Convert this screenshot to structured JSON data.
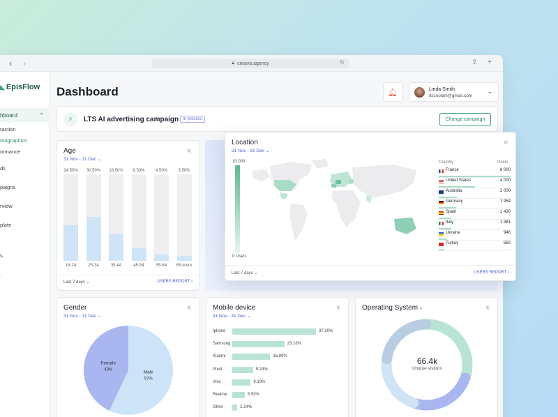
{
  "browser": {
    "url": "creava.agency"
  },
  "sidebar": {
    "logo": "EpisFlow",
    "active_item": "hboard",
    "sub_items": [
      "raction",
      "mographics",
      "ormance"
    ],
    "items": [
      "ds",
      "paigns",
      "rview",
      "plate",
      "s",
      "."
    ]
  },
  "header": {
    "title": "Dashboard",
    "user": {
      "name": "Linda Smith",
      "email": "itscoolart@gmail.com"
    }
  },
  "campaign": {
    "title": "LTS AI advertising campaign",
    "status": "In process",
    "button": "Change campaign"
  },
  "age": {
    "title": "Age",
    "date_range": "31 Nov - 31 Dec",
    "footer_left": "Last 7 days",
    "footer_right": "USERS REPORT",
    "chart_data": {
      "type": "bar",
      "categories": [
        "18-24",
        "25-34",
        "35-44",
        "45-54",
        "55-64",
        "65-more"
      ],
      "values": [
        24.5,
        30.5,
        18.5,
        8.5,
        4.5,
        3.5
      ],
      "value_labels": [
        "24.50%",
        "30.50%",
        "18.50%",
        "8.50%",
        "4.50%",
        "3.50%"
      ],
      "ylim": [
        0,
        100
      ]
    }
  },
  "location": {
    "title": "Location",
    "date_range": "31 Nov - 31 Dec",
    "scale_max": "10 000",
    "scale_min": "0 Users",
    "col_country": "Country",
    "col_users": "Users",
    "footer_left": "Last 7 days",
    "footer_right": "USERS REPORT",
    "chart_data": {
      "type": "table",
      "rows": [
        {
          "country": "France",
          "users": "8 000",
          "value": 8000
        },
        {
          "country": "United States",
          "users": "4 000",
          "value": 4000
        },
        {
          "country": "Australia",
          "users": "2 000",
          "value": 2000
        },
        {
          "country": "Germany",
          "users": "1 954",
          "value": 1954
        },
        {
          "country": "Spain",
          "users": "1 430",
          "value": 1430
        },
        {
          "country": "Italy",
          "users": "1 381",
          "value": 1381
        },
        {
          "country": "Ukraine",
          "users": "946",
          "value": 946
        },
        {
          "country": "Turkey",
          "users": "582",
          "value": 582
        }
      ]
    }
  },
  "gender": {
    "title": "Gender",
    "date_range": "31 Nov - 31 Dec",
    "chart_data": {
      "type": "pie",
      "slices": [
        {
          "label": "Female",
          "pct": "43%",
          "value": 43,
          "color": "#a9b6f0"
        },
        {
          "label": "Male",
          "pct": "57%",
          "value": 57,
          "color": "#cde4f8"
        }
      ]
    }
  },
  "mobile": {
    "title": "Mobile device",
    "date_range": "31 Nov - 31 Dec",
    "chart_data": {
      "type": "bar",
      "categories": [
        "Iphone",
        "Samsung",
        "Xiaomi",
        "Pixel",
        "Vivo",
        "Realme",
        "Other"
      ],
      "values": [
        37.2,
        23.16,
        16.89,
        9.24,
        8.19,
        5.53,
        2.24
      ],
      "value_labels": [
        "37.20%",
        "23.16%",
        "16.89%",
        "9.24%",
        "8.19%",
        "5.53%",
        "2.24%"
      ]
    }
  },
  "os": {
    "title": "Operating System",
    "center_value": "66.4k",
    "center_label": "Unique visitors",
    "chart_data": {
      "type": "pie",
      "segments": [
        {
          "value": 30,
          "color": "#b9e3d2"
        },
        {
          "value": 25,
          "color": "#a9b6f0"
        },
        {
          "value": 22,
          "color": "#cfe4f7"
        },
        {
          "value": 23,
          "color": "#b8cde0"
        }
      ]
    }
  }
}
